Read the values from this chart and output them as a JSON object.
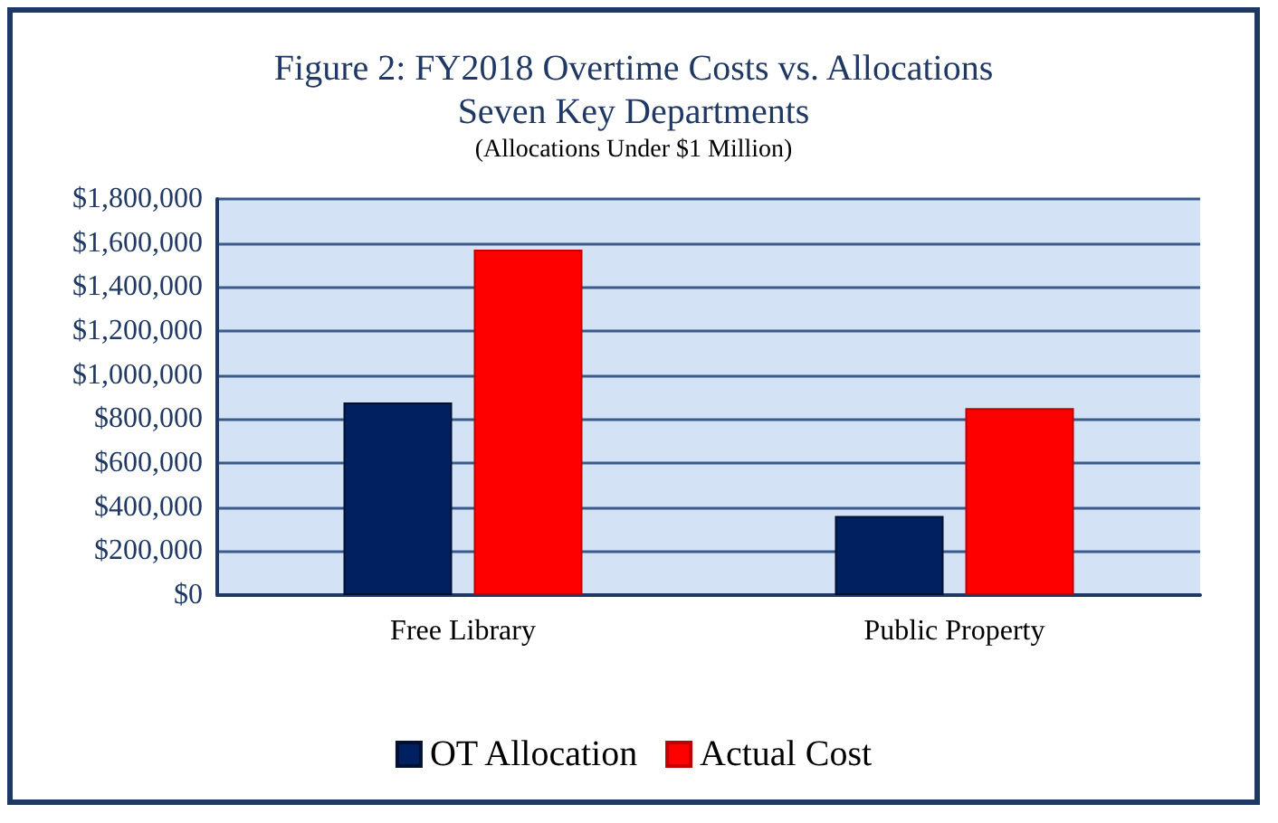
{
  "chart_data": {
    "type": "bar",
    "title": "Figure 2: FY2018 Overtime Costs vs. Allocations\nSeven Key Departments",
    "subtitle": "(Allocations Under $1 Million)",
    "categories": [
      "Free Library",
      "Public Property"
    ],
    "series": [
      {
        "name": "OT Allocation",
        "color": "#002060",
        "values": [
          875000,
          360000
        ]
      },
      {
        "name": "Actual Cost",
        "color": "#ff0000",
        "values": [
          1570000,
          850000
        ]
      }
    ],
    "ylim": [
      0,
      1800000
    ],
    "yticks": [
      {
        "value": 0,
        "label": "$0"
      },
      {
        "value": 200000,
        "label": "$200,000"
      },
      {
        "value": 400000,
        "label": "$400,000"
      },
      {
        "value": 600000,
        "label": "$600,000"
      },
      {
        "value": 800000,
        "label": "$800,000"
      },
      {
        "value": 1000000,
        "label": "$1,000,000"
      },
      {
        "value": 1200000,
        "label": "$1,200,000"
      },
      {
        "value": 1400000,
        "label": "$1,400,000"
      },
      {
        "value": 1600000,
        "label": "$1,600,000"
      },
      {
        "value": 1800000,
        "label": "$1,800,000"
      }
    ],
    "grid": "y",
    "legend": "bottom"
  }
}
